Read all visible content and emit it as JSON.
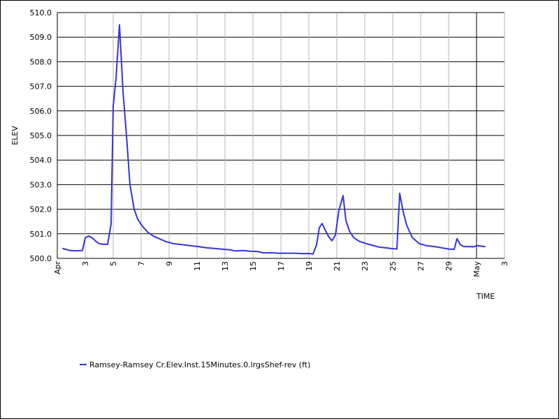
{
  "chart_data": {
    "type": "line",
    "title": "",
    "xlabel": "TIME",
    "ylabel": "ELEV",
    "ylim": [
      500.0,
      510.0
    ],
    "xlim": [
      "Apr 1",
      "May 3"
    ],
    "y_ticks": [
      "500.0",
      "501.0",
      "502.0",
      "503.0",
      "504.0",
      "505.0",
      "506.0",
      "507.0",
      "508.0",
      "509.0",
      "510.0"
    ],
    "x_ticks": [
      {
        "day": 1,
        "label": "Apr"
      },
      {
        "day": 3,
        "label": "3"
      },
      {
        "day": 5,
        "label": "5"
      },
      {
        "day": 7,
        "label": "7"
      },
      {
        "day": 9,
        "label": "9"
      },
      {
        "day": 11,
        "label": "11"
      },
      {
        "day": 13,
        "label": "13"
      },
      {
        "day": 15,
        "label": "15"
      },
      {
        "day": 17,
        "label": "17"
      },
      {
        "day": 19,
        "label": "19"
      },
      {
        "day": 21,
        "label": "21"
      },
      {
        "day": 23,
        "label": "23"
      },
      {
        "day": 25,
        "label": "25"
      },
      {
        "day": 27,
        "label": "27"
      },
      {
        "day": 29,
        "label": "29"
      },
      {
        "day": 31,
        "label": "May"
      },
      {
        "day": 33,
        "label": "3"
      }
    ],
    "month_boundary_day": 31,
    "grid": true,
    "legend_position": "bottom-left",
    "series": [
      {
        "name": "Ramsey-Ramsey Cr.Elev.Inst.15Minutes.0.lrgsShef-rev (ft)",
        "color": "#3333dd",
        "points": [
          [
            1.4,
            500.4
          ],
          [
            1.6,
            500.37
          ],
          [
            1.9,
            500.32
          ],
          [
            2.3,
            500.31
          ],
          [
            2.8,
            500.32
          ],
          [
            3.0,
            500.84
          ],
          [
            3.25,
            500.91
          ],
          [
            3.5,
            500.84
          ],
          [
            3.75,
            500.7
          ],
          [
            4.0,
            500.6
          ],
          [
            4.3,
            500.57
          ],
          [
            4.6,
            500.57
          ],
          [
            4.85,
            501.4
          ],
          [
            5.0,
            506.2
          ],
          [
            5.2,
            507.3
          ],
          [
            5.45,
            509.5
          ],
          [
            5.7,
            506.8
          ],
          [
            5.95,
            505.0
          ],
          [
            6.2,
            503.0
          ],
          [
            6.5,
            502.0
          ],
          [
            6.75,
            501.6
          ],
          [
            7.1,
            501.3
          ],
          [
            7.5,
            501.05
          ],
          [
            7.9,
            500.9
          ],
          [
            8.3,
            500.8
          ],
          [
            8.7,
            500.7
          ],
          [
            9.3,
            500.6
          ],
          [
            9.9,
            500.56
          ],
          [
            10.5,
            500.52
          ],
          [
            11.1,
            500.48
          ],
          [
            11.7,
            500.43
          ],
          [
            12.3,
            500.4
          ],
          [
            12.9,
            500.37
          ],
          [
            13.4,
            500.35
          ],
          [
            13.7,
            500.3
          ],
          [
            14.3,
            500.32
          ],
          [
            14.8,
            500.29
          ],
          [
            15.3,
            500.28
          ],
          [
            15.8,
            500.22
          ],
          [
            16.3,
            500.23
          ],
          [
            16.8,
            500.21
          ],
          [
            17.5,
            500.21
          ],
          [
            18.1,
            500.21
          ],
          [
            18.6,
            500.19
          ],
          [
            19.0,
            500.2
          ],
          [
            19.3,
            500.18
          ],
          [
            19.55,
            500.55
          ],
          [
            19.75,
            501.25
          ],
          [
            19.95,
            501.42
          ],
          [
            20.15,
            501.18
          ],
          [
            20.4,
            500.9
          ],
          [
            20.65,
            500.72
          ],
          [
            20.9,
            500.95
          ],
          [
            21.15,
            501.95
          ],
          [
            21.45,
            502.55
          ],
          [
            21.65,
            501.55
          ],
          [
            21.9,
            501.12
          ],
          [
            22.2,
            500.85
          ],
          [
            22.6,
            500.7
          ],
          [
            23.0,
            500.62
          ],
          [
            23.5,
            500.54
          ],
          [
            24.0,
            500.46
          ],
          [
            24.5,
            500.43
          ],
          [
            24.9,
            500.4
          ],
          [
            25.3,
            500.38
          ],
          [
            25.5,
            502.65
          ],
          [
            25.75,
            501.9
          ],
          [
            26.0,
            501.35
          ],
          [
            26.4,
            500.85
          ],
          [
            26.9,
            500.6
          ],
          [
            27.4,
            500.52
          ],
          [
            28.0,
            500.48
          ],
          [
            28.6,
            500.42
          ],
          [
            29.0,
            500.38
          ],
          [
            29.4,
            500.37
          ],
          [
            29.6,
            500.8
          ],
          [
            29.85,
            500.55
          ],
          [
            30.1,
            500.48
          ],
          [
            30.5,
            500.48
          ],
          [
            30.8,
            500.47
          ],
          [
            31.0,
            500.52
          ],
          [
            31.3,
            500.5
          ],
          [
            31.6,
            500.48
          ]
        ]
      }
    ]
  }
}
